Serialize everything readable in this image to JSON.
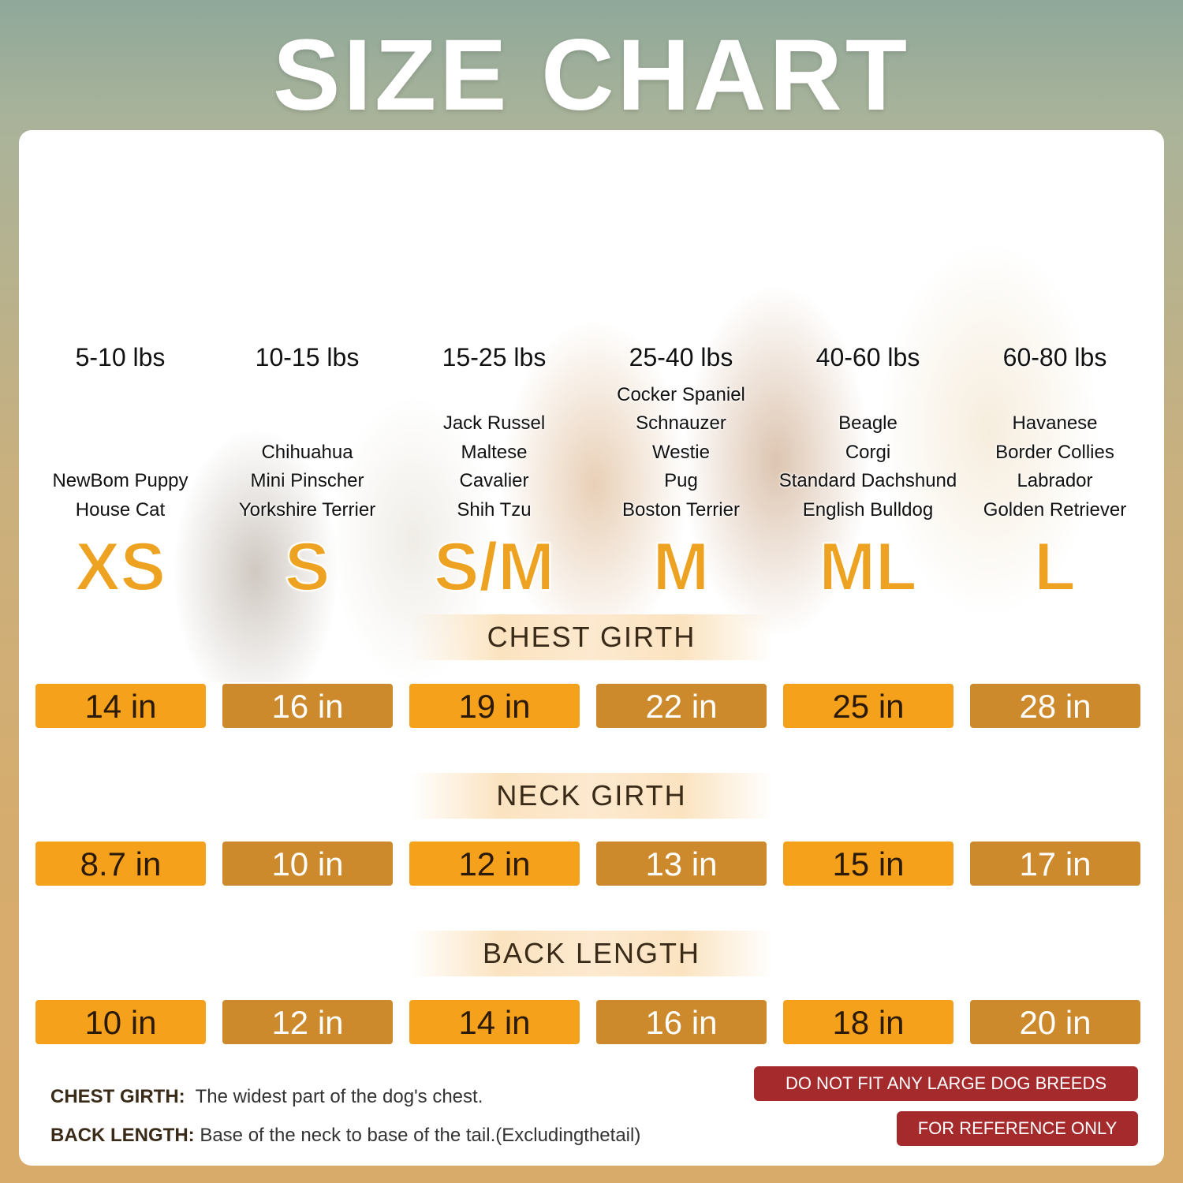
{
  "title": "SIZE CHART",
  "sizes": [
    {
      "size": "XS",
      "weight": "5-10 lbs",
      "breeds": [
        "NewBom Puppy",
        "House Cat"
      ],
      "chest": "14 in",
      "neck": "8.7 in",
      "back": "10 in"
    },
    {
      "size": "S",
      "weight": "10-15 lbs",
      "breeds": [
        "Chihuahua",
        "Mini Pinscher",
        "Yorkshire Terrier"
      ],
      "chest": "16 in",
      "neck": "10 in",
      "back": "12 in"
    },
    {
      "size": "S/M",
      "weight": "15-25 lbs",
      "breeds": [
        "Jack Russel",
        "Maltese",
        "Cavalier",
        "Shih Tzu"
      ],
      "chest": "19 in",
      "neck": "12 in",
      "back": "14 in"
    },
    {
      "size": "M",
      "weight": "25-40 lbs",
      "breeds": [
        "Cocker Spaniel",
        "Schnauzer",
        "Westie",
        "Pug",
        "Boston Terrier"
      ],
      "chest": "22 in",
      "neck": "13 in",
      "back": "16 in"
    },
    {
      "size": "ML",
      "weight": "40-60 lbs",
      "breeds": [
        "Beagle",
        "Corgi",
        "Standard Dachshund",
        "English Bulldog"
      ],
      "chest": "25 in",
      "neck": "15 in",
      "back": "18 in"
    },
    {
      "size": "L",
      "weight": "60-80 lbs",
      "breeds": [
        "Havanese",
        "Border Collies",
        "Labrador",
        "Golden Retriever"
      ],
      "chest": "28 in",
      "neck": "17 in",
      "back": "20 in"
    }
  ],
  "sections": {
    "chest": "CHEST GIRTH",
    "neck": "NECK GIRTH",
    "back": "BACK LENGTH"
  },
  "notes": {
    "chest_label": "CHEST GIRTH:",
    "chest_text": "The widest part of the dog's chest.",
    "back_label": "BACK LENGTH:",
    "back_text": "Base of the neck to base of the tail.(Excludingthetail)"
  },
  "warnings": [
    "DO NOT FIT ANY LARGE DOG BREEDS",
    "FOR REFERENCE ONLY"
  ],
  "colors": {
    "orange": "#f6a11c",
    "brown": "#cc8a2c",
    "warning": "#a42a2c"
  }
}
